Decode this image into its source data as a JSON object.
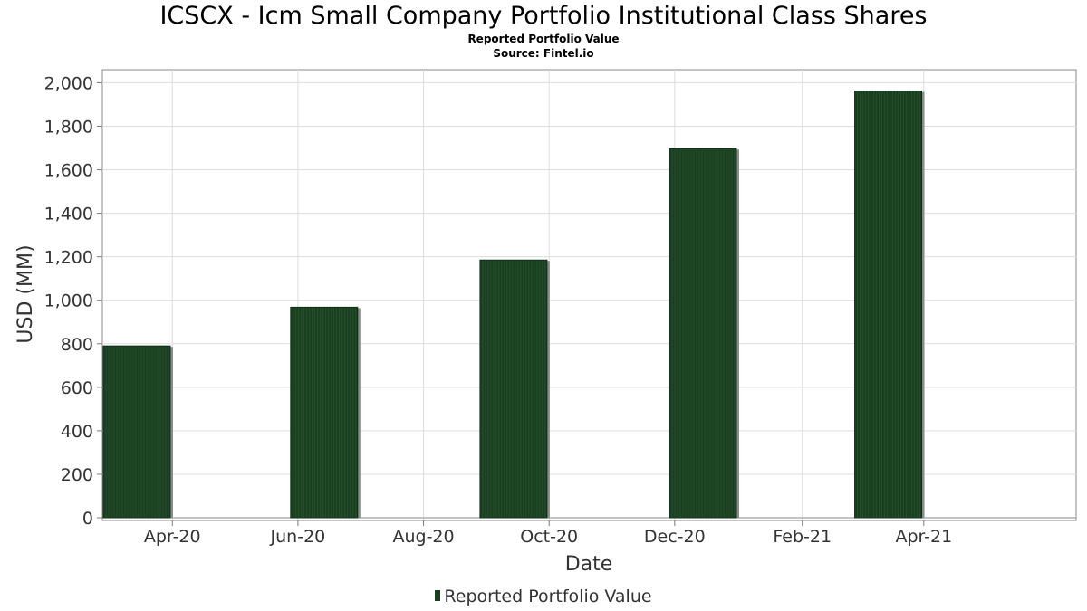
{
  "chart_data": {
    "type": "bar",
    "title": "ICSCX - Icm Small Company Portfolio Institutional Class Shares",
    "subtitle": "Reported Portfolio Value",
    "source": "Source: Fintel.io",
    "xlabel": "Date",
    "ylabel": "USD (MM)",
    "ylim": [
      0,
      2060
    ],
    "xlim": [
      "2020-02-27",
      "2021-06-14"
    ],
    "yticks": [
      0,
      200,
      400,
      600,
      800,
      1000,
      1200,
      1400,
      1600,
      1800,
      2000
    ],
    "ytick_labels": [
      "0",
      "200",
      "400",
      "600",
      "800",
      "1,000",
      "1,200",
      "1,400",
      "1,600",
      "1,800",
      "2,000"
    ],
    "xticks": [
      "2020-04-01",
      "2020-06-01",
      "2020-08-01",
      "2020-10-01",
      "2020-12-01",
      "2021-02-01",
      "2021-04-01"
    ],
    "xtick_labels": [
      "Apr-20",
      "Jun-20",
      "Aug-20",
      "Oct-20",
      "Dec-20",
      "Feb-21",
      "Apr-21"
    ],
    "grid": true,
    "legend_position": "bottom-center",
    "series": [
      {
        "name": "Reported Portfolio Value",
        "color": "#1a3f20",
        "x": [
          "2020-03-31",
          "2020-06-30",
          "2020-09-30",
          "2020-12-31",
          "2021-03-31"
        ],
        "values": [
          790,
          968,
          1185,
          1697,
          1962
        ]
      }
    ]
  }
}
